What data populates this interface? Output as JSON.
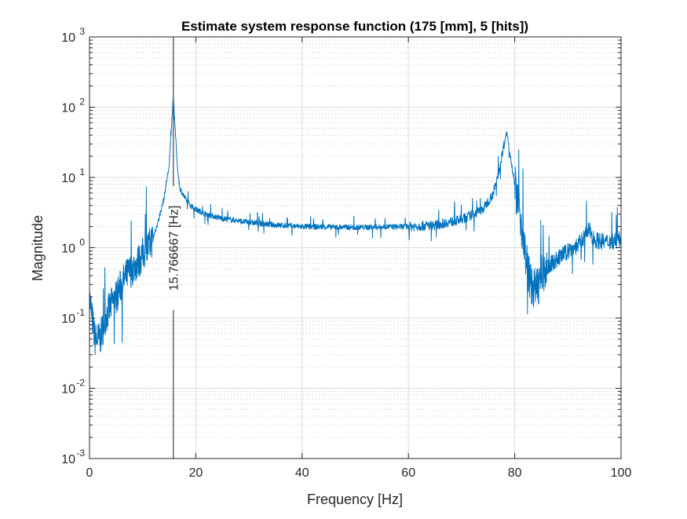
{
  "chart_data": {
    "type": "line",
    "title": "Estimate system response function (175 [mm], 5 [hits])",
    "xlabel": "Frequency [Hz]",
    "ylabel": "Magnitude",
    "xlim": [
      0,
      100
    ],
    "ylim": [
      0.001,
      1000
    ],
    "yscale": "log",
    "grid": true,
    "minor_grid": true,
    "x_ticks": [
      "0",
      "20",
      "40",
      "60",
      "80",
      "100"
    ],
    "y_ticks": [
      {
        "base": "10",
        "exp": "-3"
      },
      {
        "base": "10",
        "exp": "-2"
      },
      {
        "base": "10",
        "exp": "-1"
      },
      {
        "base": "10",
        "exp": "0"
      },
      {
        "base": "10",
        "exp": "1"
      },
      {
        "base": "10",
        "exp": "2"
      },
      {
        "base": "10",
        "exp": "3"
      }
    ],
    "series_color": "#0072BD",
    "series": [
      {
        "x": [
          0,
          1,
          2,
          3,
          4,
          5,
          6,
          7,
          8,
          9,
          10,
          11,
          12,
          13,
          14,
          15,
          15.77,
          16.5,
          17,
          18,
          19,
          20,
          22,
          25,
          30,
          35,
          40,
          50,
          60,
          65,
          70,
          74,
          76,
          77,
          78,
          78.5,
          79,
          80,
          81,
          82,
          83,
          84,
          85,
          87,
          90,
          92,
          94,
          95,
          97,
          100
        ],
        "y": [
          0.2,
          0.05,
          0.05,
          0.1,
          0.15,
          0.2,
          0.3,
          0.4,
          0.5,
          0.6,
          0.8,
          1.0,
          1.4,
          2.5,
          5,
          15,
          150,
          15,
          7,
          5,
          4,
          3.5,
          3,
          2.6,
          2.3,
          2.1,
          2.0,
          1.95,
          2.0,
          2.1,
          2.5,
          3.5,
          6,
          12,
          30,
          45,
          25,
          8,
          3,
          0.8,
          0.3,
          0.25,
          0.4,
          0.6,
          0.9,
          1.1,
          1.8,
          1.3,
          1.2,
          1.3
        ]
      }
    ],
    "annotation": {
      "x": 15.766667,
      "label": "15.766667 [Hz]",
      "line_color": "#666666"
    }
  }
}
